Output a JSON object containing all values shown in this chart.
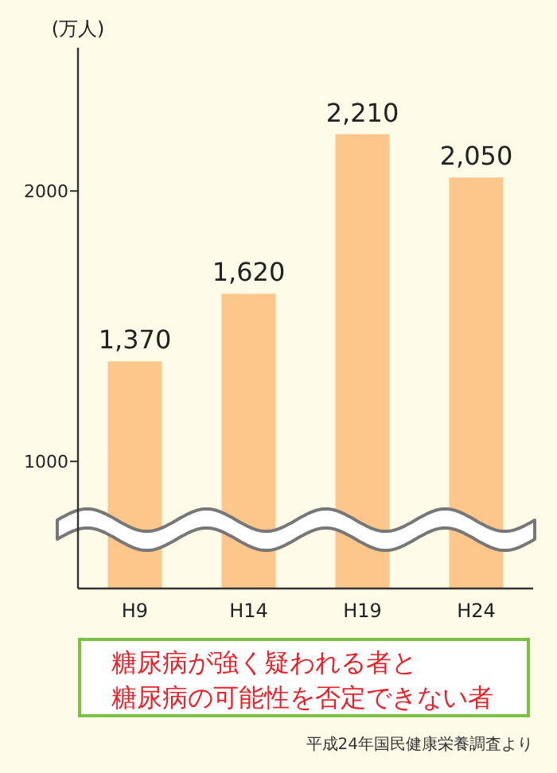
{
  "chart_data": {
    "type": "bar",
    "ylabel": "(万人)",
    "categories": [
      "H9",
      "H14",
      "H19",
      "H24"
    ],
    "values": [
      1370,
      1620,
      2210,
      2050
    ],
    "value_labels": [
      "1,370",
      "1,620",
      "2,210",
      "2,050"
    ],
    "color": "#fdc68a",
    "ylim": [
      530,
      2530
    ],
    "yticks": [
      1000,
      2000
    ],
    "grid": false,
    "annotations": [
      "糖尿病が強く疑われる者と",
      "糖尿病の可能性を否定できない者",
      "平成24年国民健康栄養調査より"
    ]
  }
}
